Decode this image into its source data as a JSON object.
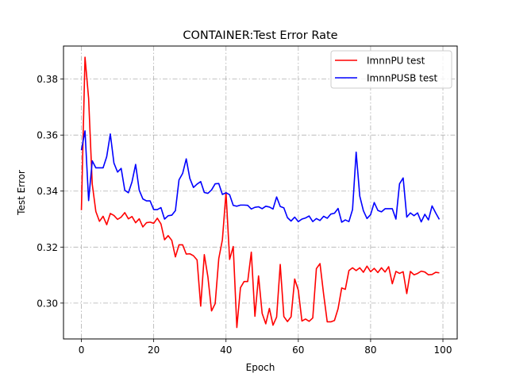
{
  "chart_data": {
    "type": "line",
    "title": "CONTAINER:Test Error Rate",
    "xlabel": "Epoch",
    "ylabel": "Test Error",
    "xlim": [
      -4.95,
      103.95
    ],
    "ylim": [
      0.2872,
      0.3918
    ],
    "xticks": [
      0,
      20,
      40,
      60,
      80,
      100
    ],
    "yticks": [
      0.3,
      0.32,
      0.34,
      0.36,
      0.38
    ],
    "grid": true,
    "legend_position": "top-right",
    "series": [
      {
        "name": "ImnnPU test",
        "color": "#ff0000",
        "x": [
          0,
          1,
          2,
          3,
          4,
          5,
          6,
          7,
          8,
          9,
          10,
          11,
          12,
          13,
          14,
          15,
          16,
          17,
          18,
          19,
          20,
          21,
          22,
          23,
          24,
          25,
          26,
          27,
          28,
          29,
          30,
          31,
          32,
          33,
          34,
          35,
          36,
          37,
          38,
          39,
          40,
          41,
          42,
          43,
          44,
          45,
          46,
          47,
          48,
          49,
          50,
          51,
          52,
          53,
          54,
          55,
          56,
          57,
          58,
          59,
          60,
          61,
          62,
          63,
          64,
          65,
          66,
          67,
          68,
          69,
          70,
          71,
          72,
          73,
          74,
          75,
          76,
          77,
          78,
          79,
          80,
          81,
          82,
          83,
          84,
          85,
          86,
          87,
          88,
          89,
          90,
          91,
          92,
          93,
          94,
          95,
          96,
          97,
          98,
          99
        ],
        "values": [
          0.3332,
          0.3878,
          0.3731,
          0.3425,
          0.3327,
          0.3292,
          0.331,
          0.328,
          0.332,
          0.3313,
          0.3299,
          0.3307,
          0.3323,
          0.3301,
          0.3309,
          0.3287,
          0.3301,
          0.3272,
          0.3287,
          0.3289,
          0.3285,
          0.3303,
          0.3283,
          0.3226,
          0.3241,
          0.3224,
          0.3165,
          0.3208,
          0.3208,
          0.3175,
          0.3176,
          0.3169,
          0.3154,
          0.2989,
          0.3173,
          0.3093,
          0.2972,
          0.2998,
          0.3159,
          0.3226,
          0.3395,
          0.3156,
          0.3202,
          0.2913,
          0.3055,
          0.3077,
          0.3077,
          0.3182,
          0.2953,
          0.3097,
          0.2963,
          0.2926,
          0.2981,
          0.2921,
          0.295,
          0.3138,
          0.2952,
          0.2934,
          0.2951,
          0.3086,
          0.3046,
          0.2936,
          0.2943,
          0.2935,
          0.2947,
          0.3123,
          0.3141,
          0.3032,
          0.2933,
          0.2933,
          0.2938,
          0.298,
          0.3054,
          0.3049,
          0.3116,
          0.3126,
          0.3116,
          0.3126,
          0.311,
          0.3132,
          0.3112,
          0.3124,
          0.3109,
          0.3126,
          0.3111,
          0.313,
          0.3069,
          0.3113,
          0.3106,
          0.3112,
          0.3034,
          0.3113,
          0.3101,
          0.3106,
          0.3114,
          0.3111,
          0.3101,
          0.3102,
          0.311,
          0.3108
        ]
      },
      {
        "name": "ImnnPUSB test",
        "color": "#0000ff",
        "x": [
          0,
          1,
          2,
          3,
          4,
          5,
          6,
          7,
          8,
          9,
          10,
          11,
          12,
          13,
          14,
          15,
          16,
          17,
          18,
          19,
          20,
          21,
          22,
          23,
          24,
          25,
          26,
          27,
          28,
          29,
          30,
          31,
          32,
          33,
          34,
          35,
          36,
          37,
          38,
          39,
          40,
          41,
          42,
          43,
          44,
          45,
          46,
          47,
          48,
          49,
          50,
          51,
          52,
          53,
          54,
          55,
          56,
          57,
          58,
          59,
          60,
          61,
          62,
          63,
          64,
          65,
          66,
          67,
          68,
          69,
          70,
          71,
          72,
          73,
          74,
          75,
          76,
          77,
          78,
          79,
          80,
          81,
          82,
          83,
          84,
          85,
          86,
          87,
          88,
          89,
          90,
          91,
          92,
          93,
          94,
          95,
          96,
          97,
          98,
          99
        ],
        "values": [
          0.3546,
          0.3615,
          0.3366,
          0.3508,
          0.3483,
          0.3483,
          0.3483,
          0.3523,
          0.3604,
          0.35,
          0.3468,
          0.3481,
          0.3403,
          0.3394,
          0.3433,
          0.3495,
          0.3403,
          0.3372,
          0.3365,
          0.3365,
          0.3334,
          0.3334,
          0.3341,
          0.33,
          0.3312,
          0.3314,
          0.333,
          0.344,
          0.3463,
          0.3515,
          0.3445,
          0.3413,
          0.3425,
          0.3434,
          0.3395,
          0.3392,
          0.3404,
          0.3426,
          0.3427,
          0.3388,
          0.3394,
          0.3387,
          0.3349,
          0.3346,
          0.335,
          0.335,
          0.3349,
          0.3336,
          0.3342,
          0.3344,
          0.3337,
          0.3346,
          0.3343,
          0.3336,
          0.3379,
          0.3345,
          0.334,
          0.3305,
          0.3293,
          0.3307,
          0.3291,
          0.33,
          0.3304,
          0.3311,
          0.3291,
          0.3302,
          0.3295,
          0.331,
          0.3303,
          0.3318,
          0.3321,
          0.3338,
          0.3289,
          0.3297,
          0.3291,
          0.3334,
          0.3539,
          0.3382,
          0.333,
          0.3302,
          0.3316,
          0.3359,
          0.3331,
          0.3326,
          0.3337,
          0.3337,
          0.3337,
          0.33,
          0.3426,
          0.3447,
          0.3307,
          0.3322,
          0.3312,
          0.3322,
          0.329,
          0.3317,
          0.3297,
          0.3347,
          0.3322,
          0.3299
        ]
      }
    ]
  }
}
